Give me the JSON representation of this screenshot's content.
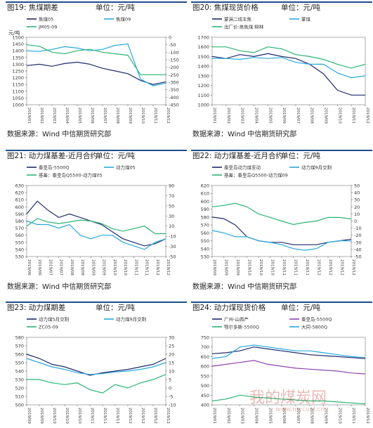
{
  "source_text": "数据来源：Wind 中信期货研究部",
  "watermark": {
    "text": "我的煤炭网",
    "url": "www.mycoal.cn"
  },
  "panels": [
    {
      "title": "图19: 焦煤期差",
      "unit": "单位：元/吨",
      "chart_data": {
        "type": "line",
        "ylabel": "元/吨",
        "x": [
          "2019/01",
          "2019/02",
          "2019/03",
          "2019/04",
          "2019/05",
          "2019/06",
          "2019/07",
          "2019/08",
          "2019/09",
          "2019/10",
          "2019/11",
          "2019/12"
        ],
        "ylim": [
          1000,
          1500
        ],
        "yticks": [
          1000,
          1050,
          1100,
          1150,
          1200,
          1250,
          1300,
          1350,
          1400,
          1450,
          1500
        ],
        "y2lim": [
          -450,
          0
        ],
        "y2ticks": [
          0,
          -50,
          -100,
          -150,
          -200,
          -250,
          -300,
          -350,
          -400,
          -450
        ],
        "series": [
          {
            "name": "焦煤05",
            "axis": "left",
            "color": "#1f2a6b",
            "values": [
              1290,
              1300,
              1285,
              1305,
              1315,
              1300,
              1270,
              1250,
              1230,
              1180,
              1150,
              1170
            ]
          },
          {
            "name": "焦煤09",
            "axis": "left",
            "color": "#27a8e0",
            "values": [
              1400,
              1395,
              1410,
              1430,
              1420,
              1400,
              1410,
              1440,
              1450,
              1190,
              1140,
              1160
            ]
          },
          {
            "name": "JM05-09",
            "axis": "right",
            "color": "#2bb673",
            "values": [
              -50,
              -60,
              -100,
              -110,
              -90,
              -80,
              -100,
              -110,
              -120,
              -250,
              -250,
              -250
            ]
          }
        ]
      }
    },
    {
      "title": "图20: 焦煤现货价格",
      "unit": "单位：元/吨",
      "chart_data": {
        "type": "line",
        "x": [
          "2019/01",
          "2019/02",
          "2019/03",
          "2019/04",
          "2019/05",
          "2019/06",
          "2019/07",
          "2019/08",
          "2019/09",
          "2019/10",
          "2019/11",
          "2019/12"
        ],
        "ylim": [
          1000,
          1700
        ],
        "yticks": [
          1000,
          1100,
          1200,
          1300,
          1400,
          1500,
          1600,
          1700
        ],
        "series": [
          {
            "name": "蒙满二线主焦",
            "color": "#1f2a6b",
            "values": [
              1500,
              1480,
              1520,
              1500,
              1530,
              1500,
              1480,
              1420,
              1320,
              1150,
              1100,
              1100
            ]
          },
          {
            "name": "蒙煤",
            "color": "#27a8e0",
            "values": [
              1480,
              1480,
              1470,
              1490,
              1480,
              1490,
              1440,
              1420,
              1420,
              1330,
              1280,
              1300
            ]
          },
          {
            "name": "出厂价:炼焦煤:柳林",
            "color": "#2bb673",
            "values": [
              1600,
              1600,
              1560,
              1540,
              1600,
              1580,
              1520,
              1500,
              1470,
              1420,
              1380,
              1420
            ]
          }
        ]
      }
    },
    {
      "title": "图21: 动力煤基差-近月合约",
      "unit": "单位：元/吨",
      "chart_data": {
        "type": "line",
        "x": [
          "2019/06",
          "2019/06",
          "2019/07",
          "2019/07",
          "2019/08",
          "2019/08",
          "2019/09",
          "2019/09",
          "2019/10",
          "2019/10",
          "2019/11",
          "2019/11",
          "2019/12",
          "2019/12"
        ],
        "ylim": [
          530,
          630
        ],
        "yticks": [
          530,
          540,
          550,
          560,
          570,
          580,
          590,
          600,
          610,
          620,
          630
        ],
        "y2lim": [
          -50,
          90
        ],
        "y2ticks": [
          -50,
          -30,
          -10,
          10,
          30,
          50,
          70,
          90
        ],
        "series": [
          {
            "name": "秦皇岛-5500Q",
            "axis": "left",
            "color": "#1f2a6b",
            "values": [
              590,
              608,
              595,
              585,
              590,
              585,
              580,
              575,
              565,
              555,
              550,
              545,
              548,
              555
            ]
          },
          {
            "name": "动力煤05",
            "axis": "left",
            "color": "#27a8e0",
            "values": [
              580,
              575,
              575,
              570,
              575,
              560,
              555,
              560,
              560,
              550,
              545,
              540,
              550,
              555
            ]
          },
          {
            "name": "基差：秦皇岛Q5500-动力煤05",
            "axis": "right",
            "color": "#2bb673",
            "values": [
              10,
              25,
              18,
              15,
              18,
              22,
              20,
              15,
              5,
              0,
              5,
              10,
              -5,
              -5
            ]
          }
        ]
      }
    },
    {
      "title": "图22: 动力煤基差-近月合约",
      "unit": "单位：元/吨",
      "chart_data": {
        "type": "line",
        "x": [
          "2019/09",
          "2019/09",
          "2019/09",
          "2019/10",
          "2019/10",
          "2019/10",
          "2019/11",
          "2019/11",
          "2019/11",
          "2019/12",
          "2019/12",
          "2019/12",
          "2019/12"
        ],
        "ylim": [
          530,
          620
        ],
        "yticks": [
          530,
          540,
          550,
          560,
          570,
          580,
          590,
          600,
          610,
          620
        ],
        "y2lim": [
          -50,
          50
        ],
        "y2ticks": [
          -50,
          -40,
          -30,
          -20,
          -10,
          0,
          10,
          20,
          30,
          40,
          50
        ],
        "series": [
          {
            "name": "秦皇岛动力煤变动",
            "axis": "left",
            "color": "#1f2a6b",
            "values": [
              580,
              578,
              570,
              555,
              550,
              548,
              548,
              545,
              545,
              545,
              548,
              550,
              552
            ]
          },
          {
            "name": "动力煤9月交割",
            "axis": "left",
            "color": "#27a8e0",
            "values": [
              563,
              560,
              555,
              555,
              550,
              548,
              545,
              540,
              538,
              540,
              548,
              550,
              550
            ]
          },
          {
            "name": "基差：秦皇岛Q5500-动力煤09",
            "axis": "right",
            "color": "#2bb673",
            "values": [
              20,
              22,
              25,
              20,
              10,
              5,
              0,
              -5,
              -2,
              0,
              5,
              5,
              3
            ]
          }
        ]
      }
    },
    {
      "title": "图23: 动力煤期差",
      "unit": "单位：元/吨",
      "chart_data": {
        "type": "line",
        "x": [
          "2019/09",
          "2019/09",
          "2019/10",
          "2019/10",
          "2019/10",
          "2019/11",
          "2019/11",
          "2019/11",
          "2019/12",
          "2019/12",
          "2019/12",
          "2019/12"
        ],
        "ylim": [
          500,
          580
        ],
        "yticks": [
          500,
          510,
          520,
          530,
          540,
          550,
          560,
          570,
          580
        ],
        "y2lim": [
          -10,
          30
        ],
        "y2ticks": [
          -10,
          -5,
          0,
          5,
          10,
          15,
          20,
          25,
          30
        ],
        "series": [
          {
            "name": "动力煤5月交割",
            "axis": "left",
            "color": "#1f2a6b",
            "values": [
              560,
              555,
              548,
              545,
              540,
              535,
              538,
              540,
              542,
              545,
              548,
              555
            ]
          },
          {
            "name": "动力煤9月交割",
            "axis": "left",
            "color": "#27a8e0",
            "values": [
              555,
              550,
              545,
              542,
              538,
              536,
              537,
              539,
              540,
              542,
              545,
              550
            ]
          },
          {
            "name": "ZC05-09",
            "axis": "right",
            "color": "#2bb673",
            "values": [
              5,
              5,
              3,
              2,
              3,
              -1,
              -3,
              2,
              0,
              3,
              5,
              8
            ]
          }
        ]
      }
    },
    {
      "title": "图24: 动力煤现货价格",
      "unit": "单位：元/吨",
      "chart_data": {
        "type": "line",
        "x": [
          "2019/01",
          "2019/02",
          "2019/03",
          "2019/04",
          "2019/05",
          "2019/06",
          "2019/07",
          "2019/08",
          "2019/09",
          "2019/10",
          "2019/11",
          "2019/12"
        ],
        "ylim": [
          400,
          750
        ],
        "yticks": [
          400,
          450,
          500,
          550,
          600,
          650,
          700,
          750
        ],
        "series": [
          {
            "name": "广州-山西产",
            "color": "#1f2a6b",
            "values": [
              665,
              670,
              680,
              700,
              690,
              680,
              670,
              660,
              655,
              650,
              645,
              640
            ]
          },
          {
            "name": "秦皇岛-5500Q",
            "color": "#8e44ad",
            "values": [
              600,
              610,
              620,
              630,
              610,
              600,
              590,
              585,
              580,
              575,
              565,
              560
            ]
          },
          {
            "name": "鄂尔多斯-5500Q",
            "color": "#2bb673",
            "values": [
              420,
              430,
              450,
              440,
              435,
              430,
              425,
              420,
              420,
              415,
              410,
              405
            ]
          },
          {
            "name": "大同-5800Q",
            "color": "#27a8e0",
            "values": [
              640,
              650,
              700,
              710,
              700,
              690,
              680,
              680,
              670,
              660,
              650,
              645
            ]
          }
        ]
      }
    }
  ]
}
